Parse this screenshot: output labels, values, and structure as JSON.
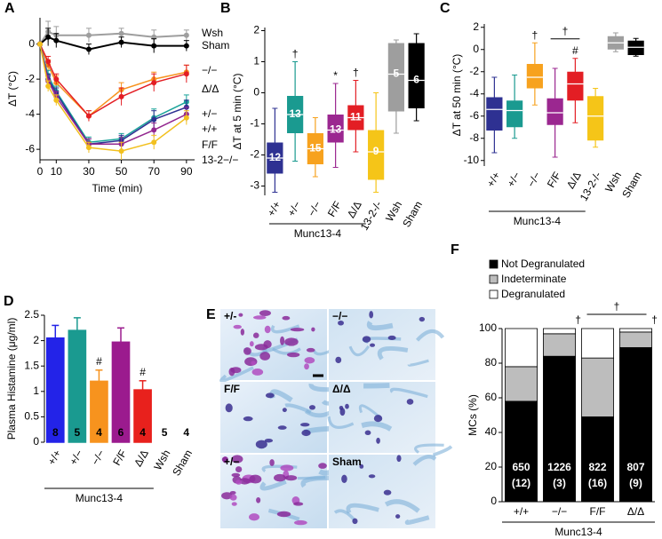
{
  "chart_data": [
    {
      "type": "line",
      "panel": "A",
      "xlabel": "Time (min)",
      "ylabel": "ΔT (°C)",
      "x": [
        0,
        5,
        10,
        30,
        50,
        70,
        90
      ],
      "xlim": [
        0,
        95
      ],
      "xticks": [
        0,
        10,
        30,
        50,
        70,
        90
      ],
      "ylim": [
        -6.6,
        1.5
      ],
      "yticks": [
        -6,
        -4,
        -2,
        0
      ],
      "series": [
        {
          "name": "Wsh",
          "color": "#9e9e9e",
          "values": [
            0,
            0.7,
            0.5,
            0.5,
            0.6,
            0.4,
            0.5
          ],
          "errors": [
            0,
            0.6,
            0.5,
            0.4,
            0.3,
            0.4,
            0.3
          ]
        },
        {
          "name": "Sham",
          "color": "#000000",
          "values": [
            0,
            0.4,
            0.2,
            -0.3,
            0.1,
            -0.1,
            -0.1
          ],
          "errors": [
            0,
            0.5,
            0.4,
            0.3,
            0.3,
            0.4,
            0.3
          ]
        },
        {
          "name": "−/−",
          "color": "#f7931e",
          "values": [
            0,
            -1.2,
            -2.2,
            -4.1,
            -2.6,
            -2.0,
            -1.6
          ],
          "errors": [
            0,
            0.3,
            0.4,
            0.3,
            0.4,
            0.4,
            0.4
          ]
        },
        {
          "name": "Δ/Δ",
          "color": "#e31e24",
          "values": [
            0,
            -1.0,
            -2.0,
            -4.1,
            -3.0,
            -2.2,
            -1.7
          ],
          "errors": [
            0,
            0.3,
            0.3,
            0.3,
            0.5,
            0.5,
            0.5
          ]
        },
        {
          "name": "+/−",
          "color": "#1aa39a",
          "values": [
            0,
            -1.8,
            -2.7,
            -5.6,
            -5.4,
            -4.2,
            -3.3
          ],
          "errors": [
            0,
            0.3,
            0.3,
            0.3,
            0.3,
            0.5,
            0.4
          ]
        },
        {
          "name": "+/+",
          "color": "#2e3192",
          "values": [
            0,
            -2.0,
            -2.8,
            -5.7,
            -5.5,
            -4.3,
            -3.6
          ],
          "errors": [
            0,
            0.3,
            0.3,
            0.3,
            0.3,
            0.5,
            0.4
          ]
        },
        {
          "name": "F/F",
          "color": "#93278f",
          "values": [
            0,
            -2.1,
            -3.0,
            -5.7,
            -5.7,
            -4.9,
            -4.0
          ],
          "errors": [
            0,
            0.3,
            0.3,
            0.3,
            0.4,
            0.4,
            0.4
          ]
        },
        {
          "name": "13-2−/−",
          "color": "#f2c01e",
          "values": [
            0,
            -2.4,
            -3.2,
            -5.9,
            -6.1,
            -5.6,
            -4.2
          ],
          "errors": [
            0,
            0.3,
            0.3,
            0.3,
            0.5,
            0.4,
            0.4
          ]
        }
      ]
    },
    {
      "type": "box",
      "panel": "B",
      "ylabel": "ΔT at 5 min (°C)",
      "group_label": "Munc13-4",
      "categories": [
        "+/+",
        "+/−",
        "−/−",
        "F/F",
        "Δ/Δ",
        "13-2-/-",
        "Wsh",
        "Sham"
      ],
      "colors": [
        "#2e3192",
        "#1a9a90",
        "#f7a21e",
        "#9b2790",
        "#e31e24",
        "#f5c518",
        "#9e9e9e",
        "#000000"
      ],
      "ylim": [
        -3.3,
        2.1
      ],
      "yticks": [
        -3,
        -2,
        -1,
        0,
        1,
        2
      ],
      "boxes": [
        {
          "low": -3.2,
          "q1": -2.6,
          "median": -2.1,
          "q3": -1.6,
          "high": -0.5
        },
        {
          "low": -2.2,
          "q1": -1.3,
          "median": -0.7,
          "q3": -0.1,
          "high": 1.0
        },
        {
          "low": -2.7,
          "q1": -2.3,
          "median": -1.8,
          "q3": -1.3,
          "high": -0.8
        },
        {
          "low": -2.4,
          "q1": -1.6,
          "median": -1.2,
          "q3": -0.7,
          "high": 0.3
        },
        {
          "low": -1.9,
          "q1": -1.2,
          "median": -0.8,
          "q3": -0.4,
          "high": 0.4
        },
        {
          "low": -3.2,
          "q1": -2.8,
          "median": -1.9,
          "q3": -1.2,
          "high": 0.0
        },
        {
          "low": -1.3,
          "q1": -0.6,
          "median": 0.6,
          "q3": 1.6,
          "high": 1.7
        },
        {
          "low": -0.9,
          "q1": -0.5,
          "median": 0.4,
          "q3": 1.6,
          "high": 1.9
        }
      ],
      "n": [
        12,
        13,
        15,
        13,
        11,
        9,
        5,
        6
      ],
      "markers": [
        null,
        "†",
        null,
        "*",
        "†",
        null,
        null,
        null
      ]
    },
    {
      "type": "box",
      "panel": "C",
      "ylabel": "ΔT at 50 min (°C)",
      "group_label": "Munc13-4",
      "categories": [
        "+/+",
        "+/−",
        "−/−",
        "F/F",
        "Δ/Δ",
        "13-2-/-",
        "Wsh",
        "Sham"
      ],
      "colors": [
        "#2e3192",
        "#1a9a90",
        "#f7a21e",
        "#9b2790",
        "#e31e24",
        "#f5c518",
        "#9e9e9e",
        "#000000"
      ],
      "ylim": [
        -10.5,
        2.3
      ],
      "yticks": [
        -10,
        -8,
        -6,
        -4,
        -2,
        0,
        2
      ],
      "boxes": [
        {
          "low": -9.3,
          "q1": -7.3,
          "median": -5.4,
          "q3": -4.3,
          "high": -2.5
        },
        {
          "low": -8.0,
          "q1": -7.0,
          "median": -5.5,
          "q3": -4.6,
          "high": -2.3
        },
        {
          "low": -5.0,
          "q1": -3.5,
          "median": -2.5,
          "q3": -1.3,
          "high": 0.6
        },
        {
          "low": -9.7,
          "q1": -6.8,
          "median": -5.7,
          "q3": -4.4,
          "high": -1.7
        },
        {
          "low": -6.6,
          "q1": -4.6,
          "median": -3.1,
          "q3": -2.0,
          "high": -0.8
        },
        {
          "low": -8.8,
          "q1": -8.2,
          "median": -6.0,
          "q3": -4.2,
          "high": -3.5
        },
        {
          "low": -0.2,
          "q1": 0.0,
          "median": 0.6,
          "q3": 1.2,
          "high": 1.5
        },
        {
          "low": -0.6,
          "q1": -0.5,
          "median": 0.2,
          "q3": 0.8,
          "high": 1.0
        }
      ],
      "markers": [
        null,
        null,
        "†",
        null,
        "#",
        null,
        null,
        null
      ],
      "bracket": "†"
    },
    {
      "type": "bar",
      "panel": "D",
      "ylabel": "Plasma Histamine (μg/ml)",
      "group_label": "Munc13-4",
      "categories": [
        "+/+",
        "+/−",
        "−/−",
        "F/F",
        "Δ/Δ",
        "Wsh",
        "Sham"
      ],
      "colors": [
        "#2323e8",
        "#1a9a90",
        "#f7931e",
        "#9b1b8e",
        "#e8211d",
        "#000000",
        "#000000"
      ],
      "values": [
        2.05,
        2.2,
        1.2,
        1.97,
        1.03,
        0,
        0
      ],
      "errors": [
        0.25,
        0.25,
        0.22,
        0.28,
        0.18,
        0,
        0
      ],
      "n": [
        8,
        5,
        4,
        6,
        4,
        5,
        4
      ],
      "markers": [
        null,
        null,
        "#",
        null,
        "#",
        null,
        null
      ],
      "ylim": [
        0,
        2.5
      ],
      "yticks": [
        0,
        0.5,
        1,
        1.5,
        2,
        2.5
      ]
    },
    {
      "type": "stacked-bar",
      "panel": "F",
      "ylabel": "MCs (%)",
      "group_label": "Munc13-4",
      "categories": [
        "+/+",
        "−/−",
        "F/F",
        "Δ/Δ"
      ],
      "series": [
        {
          "name": "Not Degranulated",
          "color": "#000000",
          "values": [
            58,
            84,
            49,
            89
          ]
        },
        {
          "name": "Indeterminate",
          "color": "#bdbdbd",
          "values": [
            20,
            13,
            34,
            9
          ]
        },
        {
          "name": "Degranulated",
          "color": "#ffffff",
          "values": [
            22,
            3,
            17,
            2
          ]
        }
      ],
      "cell_counts": [
        650,
        1226,
        822,
        807
      ],
      "mice_labels": [
        "(12)",
        "(3)",
        "(16)",
        "(9)"
      ],
      "markers": [
        null,
        "†",
        null,
        "†"
      ],
      "bracket": "†",
      "ylim": [
        0,
        100
      ],
      "yticks": [
        0,
        20,
        40,
        60,
        80,
        100
      ]
    }
  ],
  "micrographs": {
    "panel": "E",
    "labels": [
      "+/-",
      "−/−",
      "F/F",
      "Δ/Δ",
      "+/−",
      "Sham"
    ]
  }
}
